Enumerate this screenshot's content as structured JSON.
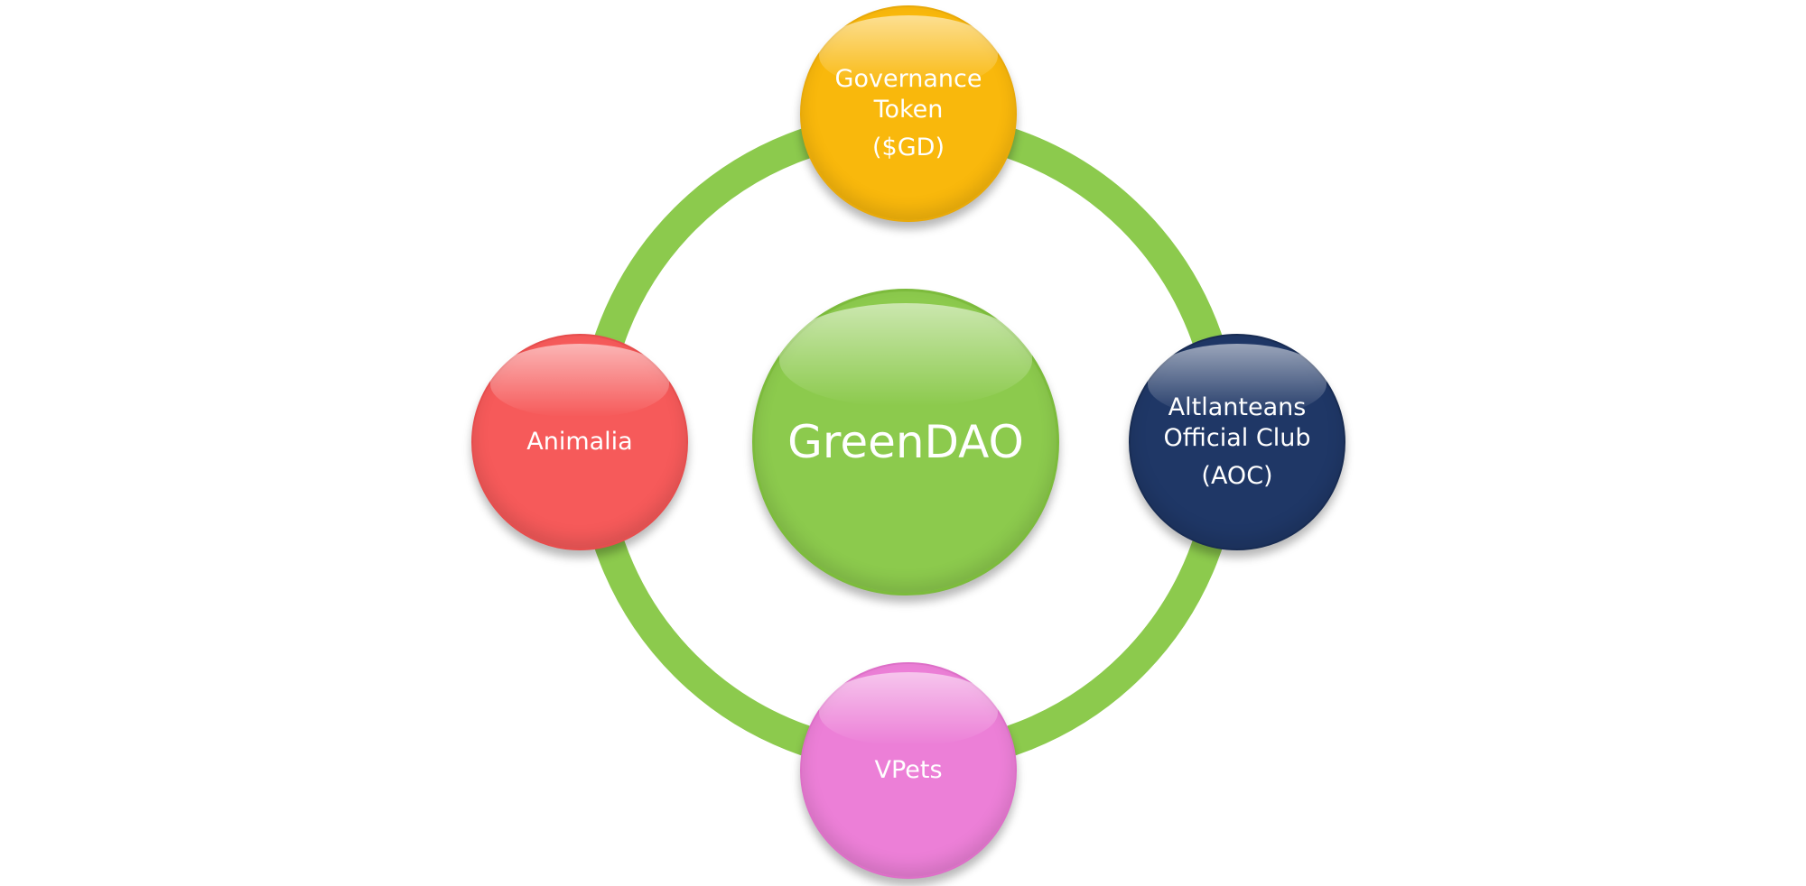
{
  "diagram": {
    "center": {
      "label": "GreenDAO",
      "color": "#8cca4d"
    },
    "nodes": {
      "top": {
        "label": "Governance\nToken",
        "extra": "($GD)",
        "color": "#f9b80c"
      },
      "left": {
        "label": "Animalia",
        "color": "#f65a5a"
      },
      "right": {
        "label": "Altlanteans\nOfficial Club",
        "extra": "(AOC)",
        "color": "#1f3766"
      },
      "bottom": {
        "label": "VPets",
        "color": "#ec7fd7"
      }
    },
    "ring_color": "#8cca4d"
  }
}
